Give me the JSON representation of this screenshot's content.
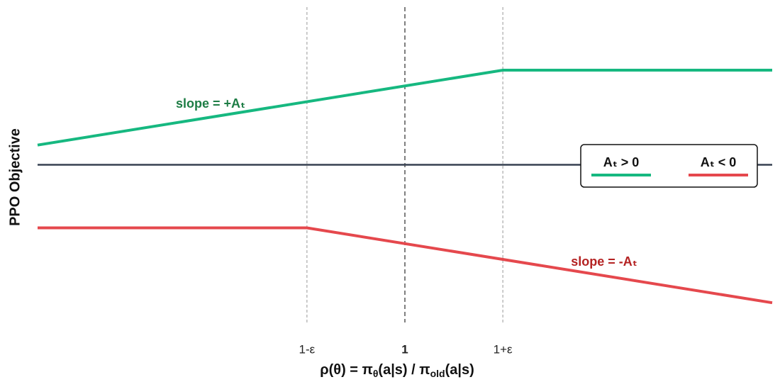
{
  "chart_data": {
    "type": "line",
    "xlabel": [
      "ρ(θ) = π",
      "θ",
      "(a|s) / π",
      "old",
      "(a|s)"
    ],
    "ylabel": "PPO Objective",
    "xlim": [
      0.25,
      1.75
    ],
    "ylim": [
      -2,
      2
    ],
    "xticks": [
      {
        "value": 0.8,
        "label": "1-ε"
      },
      {
        "value": 1,
        "label": "1"
      },
      {
        "value": 1.2,
        "label": "1+ε"
      }
    ],
    "reference_line": {
      "y": 0,
      "color": "#374151"
    },
    "series": [
      {
        "name": "Aₜ > 0",
        "color": "#16b880",
        "x": [
          0.25,
          1.2,
          1.75
        ],
        "values": [
          0.25,
          1.2,
          1.2
        ]
      },
      {
        "name": "Aₜ < 0",
        "color": "#e5484d",
        "x": [
          0.25,
          0.8,
          1.75
        ],
        "values": [
          -0.8,
          -0.8,
          -1.75
        ]
      }
    ],
    "annotations": [
      {
        "text": "slope = +Aₜ",
        "color": "#1e7d45"
      },
      {
        "text": "slope = -Aₜ",
        "color": "#b42222"
      }
    ],
    "legend": "right"
  }
}
